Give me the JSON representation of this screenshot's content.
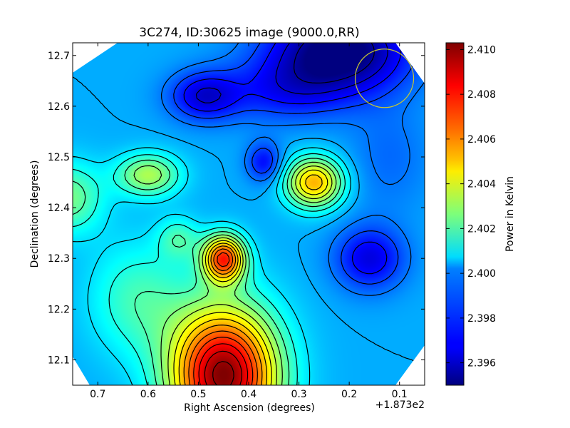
{
  "chart_data": {
    "type": "heatmap",
    "title": "3C274, ID:30625 image (9000.0,RR)",
    "xlabel": "Right Ascension (degrees)",
    "ylabel": "Declination (degrees)",
    "x_offset_label": "+1.873e2",
    "x_ticks": [
      "0.7",
      "0.6",
      "0.5",
      "0.4",
      "0.3",
      "0.2",
      "0.1"
    ],
    "y_ticks": [
      "12.7",
      "12.6",
      "12.5",
      "12.4",
      "12.3",
      "12.2",
      "12.1"
    ],
    "xlim": [
      0.75,
      0.05
    ],
    "ylim": [
      12.05,
      12.725
    ],
    "colorbar": {
      "label": "Power in Kelvin",
      "ticks": [
        "2.396",
        "2.398",
        "2.400",
        "2.402",
        "2.404",
        "2.406",
        "2.408",
        "2.410"
      ],
      "range": [
        2.395,
        2.4103
      ]
    },
    "colormap": "jet",
    "beam_marker": {
      "ra": 0.13,
      "dec": 12.655,
      "color": "#c8c832"
    },
    "features": [
      {
        "kind": "peak",
        "ra": 0.45,
        "dec": 12.07,
        "value": 2.41
      },
      {
        "kind": "peak",
        "ra": 0.45,
        "dec": 12.3,
        "value": 2.408
      },
      {
        "kind": "peak",
        "ra": 0.27,
        "dec": 12.45,
        "value": 2.406
      },
      {
        "kind": "peak",
        "ra": 0.6,
        "dec": 12.465,
        "value": 2.4032
      },
      {
        "kind": "peak",
        "ra": 0.75,
        "dec": 12.42,
        "value": 2.4025
      },
      {
        "kind": "peak",
        "ra": 0.54,
        "dec": 12.34,
        "value": 2.4018
      },
      {
        "kind": "trough",
        "ra": 0.22,
        "dec": 12.7,
        "value": 2.395
      },
      {
        "kind": "trough",
        "ra": 0.49,
        "dec": 12.62,
        "value": 2.396
      },
      {
        "kind": "trough",
        "ra": 0.16,
        "dec": 12.3,
        "value": 2.3965
      },
      {
        "kind": "trough",
        "ra": 0.37,
        "dec": 12.49,
        "value": 2.397
      }
    ]
  }
}
